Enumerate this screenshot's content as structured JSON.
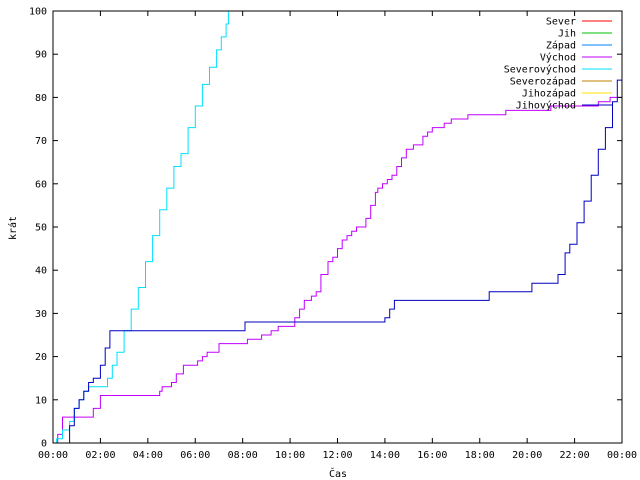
{
  "chart_data": {
    "type": "line",
    "title": "",
    "xlabel": "Čas",
    "ylabel": "krát",
    "xlim": [
      0,
      24
    ],
    "ylim": [
      0,
      100
    ],
    "grid": false,
    "legend_position": "top-right",
    "x_ticks": [
      {
        "value": 0,
        "label": "00:00"
      },
      {
        "value": 2,
        "label": "02:00"
      },
      {
        "value": 4,
        "label": "04:00"
      },
      {
        "value": 6,
        "label": "06:00"
      },
      {
        "value": 8,
        "label": "08:00"
      },
      {
        "value": 10,
        "label": "10:00"
      },
      {
        "value": 12,
        "label": "12:00"
      },
      {
        "value": 14,
        "label": "14:00"
      },
      {
        "value": 16,
        "label": "16:00"
      },
      {
        "value": 18,
        "label": "18:00"
      },
      {
        "value": 20,
        "label": "20:00"
      },
      {
        "value": 22,
        "label": "22:00"
      },
      {
        "value": 24,
        "label": "00:00"
      }
    ],
    "y_ticks": [
      0,
      10,
      20,
      30,
      40,
      50,
      60,
      70,
      80,
      90,
      100
    ],
    "series": [
      {
        "name": "Sever",
        "color": "#ff0000",
        "x": [],
        "y": []
      },
      {
        "name": "Jih",
        "color": "#00c000",
        "x": [],
        "y": []
      },
      {
        "name": "Západ",
        "color": "#0080ff",
        "x": [],
        "y": []
      },
      {
        "name": "Východ",
        "color": "#c000ff",
        "x": [
          0,
          0.2,
          0.4,
          0.8,
          1.2,
          1.6,
          1.7,
          2.0,
          2.5,
          3.0,
          4.4,
          4.5,
          4.6,
          4.9,
          5.0,
          5.2,
          5.5,
          6.0,
          6.1,
          6.3,
          6.5,
          7.0,
          7.2,
          8.2,
          8.3,
          8.6,
          8.8,
          9.2,
          9.5,
          10.0,
          10.2,
          10.4,
          10.6,
          10.9,
          11.1,
          11.3,
          11.6,
          11.8,
          12.0,
          12.2,
          12.4,
          12.6,
          12.8,
          13.0,
          13.2,
          13.4,
          13.6,
          13.7,
          13.9,
          14.1,
          14.3,
          14.5,
          14.7,
          14.9,
          15.2,
          15.4,
          15.6,
          15.8,
          16.0,
          16.3,
          16.5,
          16.8,
          17.2,
          17.5,
          18.5,
          18.8,
          19.1,
          20.0,
          20.5,
          21.0,
          21.5,
          22.5,
          23.0,
          23.5,
          24.0
        ],
        "y": [
          0,
          2,
          6,
          6,
          6,
          6,
          8,
          11,
          11,
          11,
          11,
          12,
          13,
          13,
          14,
          16,
          18,
          18,
          19,
          20,
          21,
          23,
          23,
          24,
          24,
          24,
          25,
          26,
          27,
          27,
          29,
          31,
          33,
          34,
          35,
          39,
          42,
          43,
          45,
          47,
          48,
          49,
          50,
          50,
          52,
          55,
          58,
          59,
          60,
          61,
          62,
          64,
          66,
          68,
          69,
          69,
          71,
          72,
          73,
          73,
          74,
          75,
          75,
          76,
          76,
          76,
          77,
          77,
          77,
          78,
          78,
          78,
          79,
          80,
          81
        ]
      },
      {
        "name": "Severovýchod",
        "color": "#00e0ff",
        "x": [
          0,
          0.15,
          0.4,
          0.7,
          0.9,
          1.1,
          1.3,
          1.5,
          1.8,
          2.1,
          2.3,
          2.5,
          2.7,
          3.0,
          3.3,
          3.6,
          3.9,
          4.2,
          4.5,
          4.8,
          5.1,
          5.4,
          5.7,
          6.0,
          6.3,
          6.6,
          6.9,
          7.1,
          7.3,
          7.4
        ],
        "y": [
          0,
          1,
          3,
          5,
          8,
          10,
          12,
          13,
          13,
          13,
          15,
          18,
          21,
          26,
          31,
          36,
          42,
          48,
          54,
          59,
          64,
          67,
          73,
          78,
          83,
          87,
          91,
          94,
          97,
          100
        ]
      },
      {
        "name": "Severozápad",
        "color": "#c08000",
        "x": [],
        "y": []
      },
      {
        "name": "Jihozápad",
        "color": "#ffe000",
        "x": [],
        "y": []
      },
      {
        "name": "Jihovýchod",
        "color": "#0000c0",
        "x": [
          0,
          0.5,
          0.7,
          0.9,
          1.1,
          1.3,
          1.5,
          1.7,
          2.0,
          2.2,
          2.4,
          2.6,
          3.0,
          5.0,
          8.0,
          8.1,
          9.0,
          11.0,
          13.8,
          14.0,
          14.2,
          14.4,
          14.6,
          16.0,
          18.2,
          18.4,
          19.0,
          20.0,
          20.2,
          21.0,
          21.3,
          21.6,
          21.8,
          22.1,
          22.4,
          22.7,
          23.0,
          23.3,
          23.6,
          23.8,
          24.0
        ],
        "y": [
          0,
          0,
          4,
          8,
          10,
          12,
          14,
          15,
          18,
          22,
          26,
          26,
          26,
          26,
          26,
          28,
          28,
          28,
          28,
          29,
          31,
          33,
          33,
          33,
          33,
          35,
          35,
          35,
          37,
          37,
          39,
          44,
          46,
          51,
          56,
          62,
          68,
          73,
          79,
          84,
          89
        ]
      }
    ]
  }
}
